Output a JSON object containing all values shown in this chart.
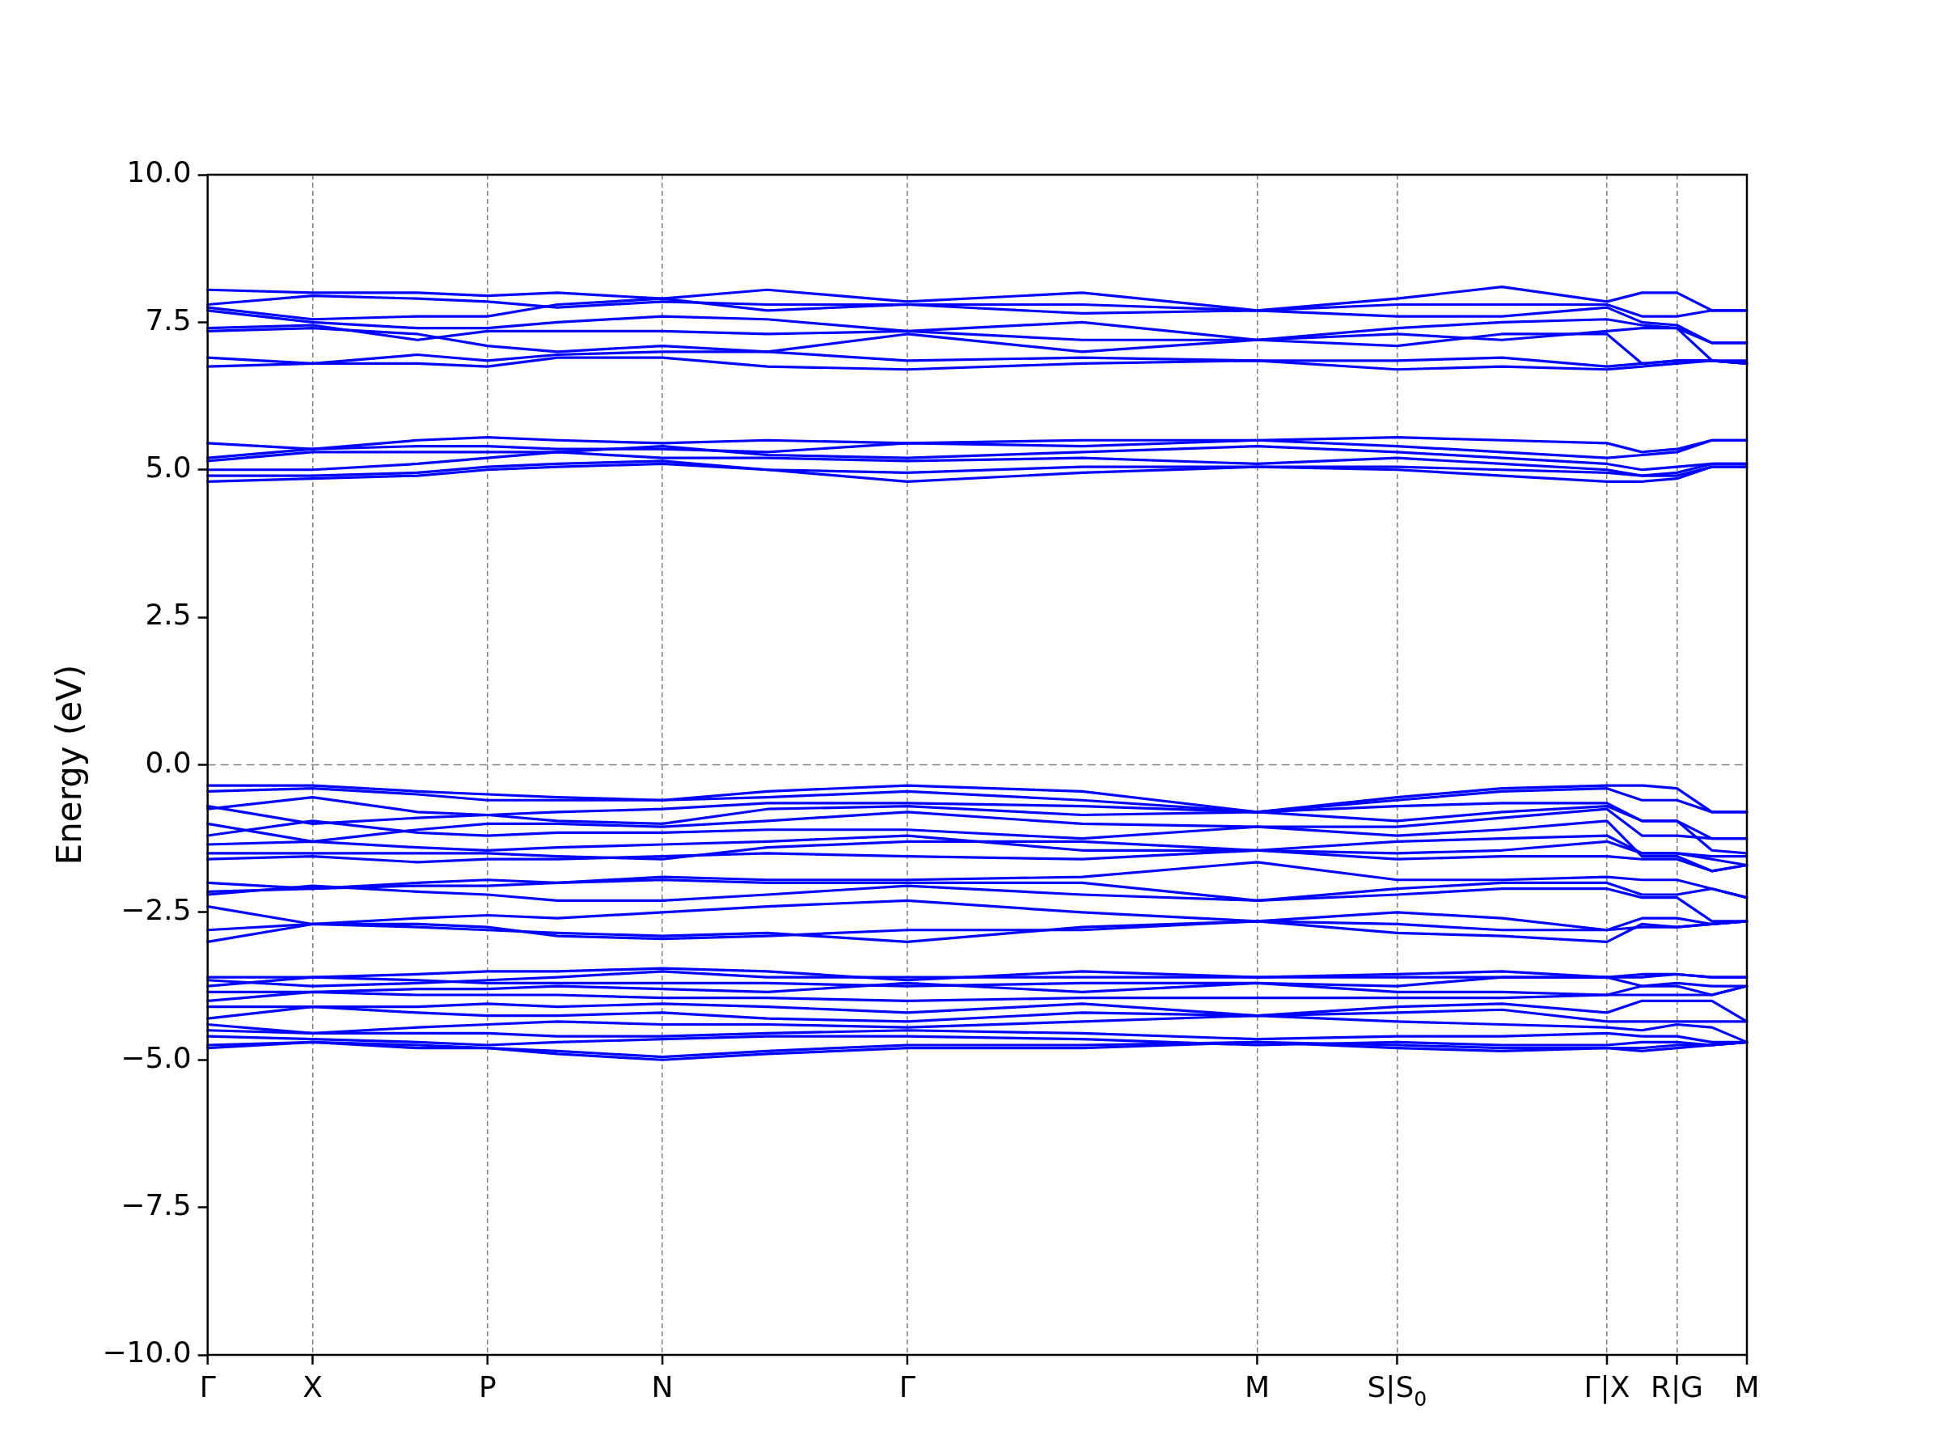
{
  "chart_data": {
    "type": "line",
    "ylabel": "Energy (eV)",
    "marker": "none",
    "grid": "x",
    "categories": [
      "Γ",
      null,
      null,
      "X",
      null,
      null,
      null,
      null,
      "P",
      null,
      null,
      null,
      null,
      "N",
      null,
      null,
      null,
      null,
      null,
      null,
      "Γ",
      null,
      null,
      null,
      null,
      null,
      null,
      null,
      null,
      null,
      "M",
      null,
      null,
      null,
      "S|S$_{0}$",
      null,
      null,
      null,
      null,
      null,
      "Γ|X",
      null,
      "R|G",
      null,
      "M"
    ],
    "ylim": [
      -10,
      10
    ],
    "yticks": [
      {
        "value": -10,
        "label": "−10.0"
      },
      {
        "value": -7.5,
        "label": "−7.5"
      },
      {
        "value": -5,
        "label": "−5.0"
      },
      {
        "value": -2.5,
        "label": "−2.5"
      },
      {
        "value": 0,
        "label": "0.0"
      },
      {
        "value": 2.5,
        "label": "2.5"
      },
      {
        "value": 5,
        "label": "5.0"
      },
      {
        "value": 7.5,
        "label": "7.5"
      },
      {
        "value": 10,
        "label": "10.0"
      }
    ],
    "ref_lines": [
      {
        "axis": "y",
        "value": 0,
        "color": "#808080",
        "line_style": "dashed"
      }
    ],
    "series": [
      {
        "color": "#0000ff",
        "values": [
          8.05,
          null,
          null,
          8.0,
          null,
          null,
          8.0,
          null,
          7.95,
          null,
          8.0,
          null,
          null,
          7.9,
          null,
          null,
          8.05,
          null,
          null,
          null,
          7.85,
          null,
          null,
          null,
          null,
          8.0,
          null,
          null,
          null,
          null,
          7.7,
          null,
          null,
          null,
          7.9,
          null,
          null,
          8.1,
          null,
          null,
          7.85,
          8.0,
          8.0,
          7.7,
          7.7
        ]
      },
      {
        "color": "#0000ff",
        "values": [
          7.8,
          null,
          null,
          7.95,
          null,
          null,
          7.9,
          null,
          7.85,
          null,
          7.75,
          null,
          null,
          7.85,
          null,
          null,
          7.8,
          null,
          null,
          null,
          7.8,
          null,
          null,
          null,
          null,
          7.8,
          null,
          null,
          null,
          null,
          7.7,
          null,
          null,
          null,
          7.8,
          null,
          null,
          7.8,
          null,
          null,
          7.8,
          7.6,
          7.6,
          7.7,
          7.7
        ]
      },
      {
        "color": "#0000ff",
        "values": [
          7.75,
          null,
          null,
          7.55,
          null,
          null,
          7.6,
          null,
          7.6,
          null,
          7.8,
          null,
          null,
          7.9,
          null,
          null,
          7.7,
          null,
          null,
          null,
          7.8,
          null,
          null,
          null,
          null,
          7.65,
          null,
          null,
          null,
          null,
          7.7,
          null,
          null,
          null,
          7.6,
          null,
          null,
          7.6,
          null,
          null,
          7.75,
          7.5,
          7.45,
          7.15,
          7.15
        ]
      },
      {
        "color": "#0000ff",
        "values": [
          7.7,
          null,
          null,
          7.5,
          null,
          null,
          7.4,
          null,
          7.4,
          null,
          7.5,
          null,
          null,
          7.6,
          null,
          null,
          7.55,
          null,
          null,
          null,
          7.35,
          null,
          null,
          null,
          null,
          7.5,
          null,
          null,
          null,
          null,
          7.2,
          null,
          null,
          null,
          7.4,
          null,
          null,
          7.5,
          null,
          null,
          7.55,
          7.45,
          7.4,
          7.15,
          7.15
        ]
      },
      {
        "color": "#0000ff",
        "values": [
          7.4,
          null,
          null,
          7.45,
          null,
          null,
          7.2,
          null,
          7.35,
          null,
          7.35,
          null,
          null,
          7.35,
          null,
          null,
          7.3,
          null,
          null,
          null,
          7.35,
          null,
          null,
          null,
          null,
          7.2,
          null,
          null,
          null,
          null,
          7.2,
          null,
          null,
          null,
          7.3,
          null,
          null,
          7.2,
          null,
          null,
          7.35,
          7.4,
          7.4,
          6.85,
          6.85
        ]
      },
      {
        "color": "#0000ff",
        "values": [
          7.35,
          null,
          null,
          7.4,
          null,
          null,
          7.3,
          null,
          7.1,
          null,
          7.0,
          null,
          null,
          7.1,
          null,
          null,
          7.0,
          null,
          null,
          null,
          7.3,
          null,
          null,
          null,
          null,
          7.0,
          null,
          null,
          null,
          null,
          7.2,
          null,
          null,
          null,
          7.1,
          null,
          null,
          7.3,
          null,
          null,
          7.3,
          6.8,
          6.85,
          6.85,
          6.8
        ]
      },
      {
        "color": "#0000ff",
        "values": [
          6.9,
          null,
          null,
          6.8,
          null,
          null,
          6.95,
          null,
          6.85,
          null,
          6.95,
          null,
          null,
          7.0,
          null,
          null,
          7.0,
          null,
          null,
          null,
          6.85,
          null,
          null,
          null,
          null,
          6.9,
          null,
          null,
          null,
          null,
          6.85,
          null,
          null,
          null,
          6.85,
          null,
          null,
          6.9,
          null,
          null,
          6.75,
          6.8,
          6.85,
          6.85,
          6.8
        ]
      },
      {
        "color": "#0000ff",
        "values": [
          6.75,
          null,
          null,
          6.8,
          null,
          null,
          6.8,
          null,
          6.75,
          null,
          6.9,
          null,
          null,
          6.9,
          null,
          null,
          6.75,
          null,
          null,
          null,
          6.7,
          null,
          null,
          null,
          null,
          6.8,
          null,
          null,
          null,
          null,
          6.85,
          null,
          null,
          null,
          6.7,
          null,
          null,
          6.75,
          null,
          null,
          6.7,
          6.75,
          6.8,
          6.85,
          6.8
        ]
      },
      {
        "color": "#0000ff",
        "values": [
          5.45,
          null,
          null,
          5.35,
          null,
          null,
          5.5,
          null,
          5.55,
          null,
          5.5,
          null,
          null,
          5.45,
          null,
          null,
          5.5,
          null,
          null,
          null,
          5.45,
          null,
          null,
          null,
          null,
          5.5,
          null,
          null,
          null,
          null,
          5.5,
          null,
          null,
          null,
          5.55,
          null,
          null,
          5.5,
          null,
          null,
          5.45,
          5.3,
          5.35,
          5.5,
          5.5
        ]
      },
      {
        "color": "#0000ff",
        "values": [
          5.2,
          null,
          null,
          5.35,
          null,
          null,
          5.4,
          null,
          5.4,
          null,
          5.35,
          null,
          null,
          5.35,
          null,
          null,
          5.3,
          null,
          null,
          null,
          5.45,
          null,
          null,
          null,
          null,
          5.4,
          null,
          null,
          null,
          null,
          5.5,
          null,
          null,
          null,
          5.4,
          null,
          null,
          5.3,
          null,
          null,
          5.2,
          5.25,
          5.3,
          5.5,
          5.5
        ]
      },
      {
        "color": "#0000ff",
        "values": [
          5.15,
          null,
          null,
          5.3,
          null,
          null,
          5.3,
          null,
          5.3,
          null,
          5.3,
          null,
          null,
          5.4,
          null,
          null,
          5.25,
          null,
          null,
          null,
          5.2,
          null,
          null,
          null,
          null,
          5.3,
          null,
          null,
          null,
          null,
          5.4,
          null,
          null,
          null,
          5.3,
          null,
          null,
          5.2,
          null,
          null,
          5.1,
          5.0,
          5.05,
          5.1,
          5.1
        ]
      },
      {
        "color": "#0000ff",
        "values": [
          5.0,
          null,
          null,
          5.0,
          null,
          null,
          5.1,
          null,
          5.2,
          null,
          5.3,
          null,
          null,
          5.2,
          null,
          null,
          5.2,
          null,
          null,
          null,
          5.15,
          null,
          null,
          null,
          null,
          5.2,
          null,
          null,
          null,
          null,
          5.1,
          null,
          null,
          null,
          5.2,
          null,
          null,
          5.1,
          null,
          null,
          5.0,
          4.9,
          4.95,
          5.1,
          5.1
        ]
      },
      {
        "color": "#0000ff",
        "values": [
          4.9,
          null,
          null,
          4.9,
          null,
          null,
          4.95,
          null,
          5.05,
          null,
          5.1,
          null,
          null,
          5.15,
          null,
          null,
          5.0,
          null,
          null,
          null,
          4.95,
          null,
          null,
          null,
          null,
          5.05,
          null,
          null,
          null,
          null,
          5.05,
          null,
          null,
          null,
          5.05,
          null,
          null,
          5.0,
          null,
          null,
          4.95,
          4.9,
          4.9,
          5.05,
          5.05
        ]
      },
      {
        "color": "#0000ff",
        "values": [
          4.8,
          null,
          null,
          4.85,
          null,
          null,
          4.9,
          null,
          5.0,
          null,
          5.05,
          null,
          null,
          5.1,
          null,
          null,
          5.0,
          null,
          null,
          null,
          4.8,
          null,
          null,
          null,
          null,
          4.95,
          null,
          null,
          null,
          null,
          5.05,
          null,
          null,
          null,
          5.0,
          null,
          null,
          4.9,
          null,
          null,
          4.8,
          4.8,
          4.85,
          5.05,
          5.05
        ]
      },
      {
        "color": "#0000ff",
        "values": [
          -0.35,
          null,
          null,
          -0.35,
          null,
          null,
          -0.45,
          null,
          -0.5,
          null,
          -0.55,
          null,
          null,
          -0.6,
          null,
          null,
          -0.45,
          null,
          null,
          null,
          -0.35,
          null,
          null,
          null,
          null,
          -0.45,
          null,
          null,
          null,
          null,
          -0.8,
          null,
          null,
          null,
          -0.55,
          null,
          null,
          -0.4,
          null,
          null,
          -0.35,
          -0.35,
          -0.4,
          -0.8,
          -0.8
        ]
      },
      {
        "color": "#0000ff",
        "values": [
          -0.45,
          null,
          null,
          -0.4,
          null,
          null,
          -0.5,
          null,
          -0.6,
          null,
          -0.6,
          null,
          null,
          -0.6,
          null,
          null,
          -0.55,
          null,
          null,
          null,
          -0.45,
          null,
          null,
          null,
          null,
          -0.6,
          null,
          null,
          null,
          null,
          -0.8,
          null,
          null,
          null,
          -0.6,
          null,
          null,
          -0.45,
          null,
          null,
          -0.4,
          -0.6,
          -0.6,
          -0.8,
          -0.8
        ]
      },
      {
        "color": "#0000ff",
        "values": [
          -0.7,
          null,
          null,
          -1.0,
          null,
          null,
          -0.9,
          null,
          -0.85,
          null,
          -0.8,
          null,
          null,
          -0.75,
          null,
          null,
          -0.65,
          null,
          null,
          null,
          -0.65,
          null,
          null,
          null,
          null,
          -0.7,
          null,
          null,
          null,
          null,
          -0.8,
          null,
          null,
          null,
          -0.7,
          null,
          null,
          -0.65,
          null,
          null,
          -0.65,
          -0.95,
          -0.95,
          -1.25,
          -1.25
        ]
      },
      {
        "color": "#0000ff",
        "values": [
          -0.75,
          null,
          null,
          -0.55,
          null,
          null,
          -0.8,
          null,
          -0.85,
          null,
          -0.95,
          null,
          null,
          -1.0,
          null,
          null,
          -0.75,
          null,
          null,
          null,
          -0.7,
          null,
          null,
          null,
          null,
          -0.85,
          null,
          null,
          null,
          null,
          -0.8,
          null,
          null,
          null,
          -0.95,
          null,
          null,
          -0.8,
          null,
          null,
          -0.7,
          -0.95,
          -0.95,
          -1.45,
          -1.5
        ]
      },
      {
        "color": "#0000ff",
        "values": [
          -1.0,
          null,
          null,
          -1.3,
          null,
          null,
          -1.1,
          null,
          -1.0,
          null,
          -1.0,
          null,
          null,
          -1.05,
          null,
          null,
          -0.95,
          null,
          null,
          null,
          -0.8,
          null,
          null,
          null,
          null,
          -1.0,
          null,
          null,
          null,
          null,
          -1.05,
          null,
          null,
          null,
          -1.05,
          null,
          null,
          -0.9,
          null,
          null,
          -0.75,
          -1.2,
          -1.2,
          -1.25,
          -1.25
        ]
      },
      {
        "color": "#0000ff",
        "values": [
          -1.2,
          null,
          null,
          -0.95,
          null,
          null,
          -1.15,
          null,
          -1.2,
          null,
          -1.15,
          null,
          null,
          -1.15,
          null,
          null,
          -1.1,
          null,
          null,
          null,
          -1.1,
          null,
          null,
          null,
          null,
          -1.25,
          null,
          null,
          null,
          null,
          -1.05,
          null,
          null,
          null,
          -1.2,
          null,
          null,
          -1.1,
          null,
          null,
          -0.95,
          -1.55,
          -1.55,
          -1.8,
          -1.7
        ]
      },
      {
        "color": "#0000ff",
        "values": [
          -1.35,
          null,
          null,
          -1.3,
          null,
          null,
          -1.4,
          null,
          -1.45,
          null,
          -1.4,
          null,
          null,
          -1.35,
          null,
          null,
          -1.3,
          null,
          null,
          null,
          -1.2,
          null,
          null,
          null,
          null,
          -1.45,
          null,
          null,
          null,
          null,
          -1.45,
          null,
          null,
          null,
          -1.3,
          null,
          null,
          -1.25,
          null,
          null,
          -1.2,
          -1.5,
          -1.5,
          -1.55,
          -1.55
        ]
      },
      {
        "color": "#0000ff",
        "values": [
          -1.5,
          null,
          null,
          -1.5,
          null,
          null,
          -1.5,
          null,
          -1.5,
          null,
          -1.55,
          null,
          null,
          -1.6,
          null,
          null,
          -1.4,
          null,
          null,
          null,
          -1.3,
          null,
          null,
          null,
          null,
          -1.3,
          null,
          null,
          null,
          null,
          -1.45,
          null,
          null,
          null,
          -1.5,
          null,
          null,
          -1.45,
          null,
          null,
          -1.3,
          -1.5,
          -1.5,
          -1.6,
          -1.7
        ]
      },
      {
        "color": "#0000ff",
        "values": [
          -1.6,
          null,
          null,
          -1.55,
          null,
          null,
          -1.65,
          null,
          -1.6,
          null,
          -1.6,
          null,
          null,
          -1.55,
          null,
          null,
          -1.5,
          null,
          null,
          null,
          -1.55,
          null,
          null,
          null,
          null,
          -1.6,
          null,
          null,
          null,
          null,
          -1.45,
          null,
          null,
          null,
          -1.6,
          null,
          null,
          -1.55,
          null,
          null,
          -1.55,
          -1.6,
          -1.6,
          -1.8,
          -1.7
        ]
      },
      {
        "color": "#0000ff",
        "values": [
          -2.0,
          null,
          null,
          -2.1,
          null,
          null,
          -2.0,
          null,
          -1.95,
          null,
          -2.0,
          null,
          null,
          -1.9,
          null,
          null,
          -1.95,
          null,
          null,
          null,
          -1.95,
          null,
          null,
          null,
          null,
          -1.9,
          null,
          null,
          null,
          null,
          -1.65,
          null,
          null,
          null,
          -1.95,
          null,
          null,
          -1.95,
          null,
          null,
          -1.9,
          -1.95,
          -1.95,
          -2.1,
          -2.25
        ]
      },
      {
        "color": "#0000ff",
        "values": [
          -2.15,
          null,
          null,
          -2.1,
          null,
          null,
          -2.05,
          null,
          -2.05,
          null,
          -2.0,
          null,
          null,
          -1.95,
          null,
          null,
          -2.0,
          null,
          null,
          null,
          -2.0,
          null,
          null,
          null,
          null,
          -2.0,
          null,
          null,
          null,
          null,
          -2.3,
          null,
          null,
          null,
          -2.1,
          null,
          null,
          -2.0,
          null,
          null,
          -2.0,
          -2.2,
          -2.2,
          -2.1,
          -2.25
        ]
      },
      {
        "color": "#0000ff",
        "values": [
          -2.2,
          null,
          null,
          -2.05,
          null,
          null,
          -2.15,
          null,
          -2.2,
          null,
          -2.3,
          null,
          null,
          -2.3,
          null,
          null,
          -2.2,
          null,
          null,
          null,
          -2.05,
          null,
          null,
          null,
          null,
          -2.2,
          null,
          null,
          null,
          null,
          -2.3,
          null,
          null,
          null,
          -2.2,
          null,
          null,
          -2.1,
          null,
          null,
          -2.1,
          -2.25,
          -2.25,
          -2.65,
          -2.65
        ]
      },
      {
        "color": "#0000ff",
        "values": [
          -2.4,
          null,
          null,
          -2.7,
          null,
          null,
          -2.6,
          null,
          -2.55,
          null,
          -2.6,
          null,
          null,
          -2.5,
          null,
          null,
          -2.4,
          null,
          null,
          null,
          -2.3,
          null,
          null,
          null,
          null,
          -2.5,
          null,
          null,
          null,
          null,
          -2.65,
          null,
          null,
          null,
          -2.5,
          null,
          null,
          -2.6,
          null,
          null,
          -2.8,
          -2.6,
          -2.6,
          -2.7,
          -2.65
        ]
      },
      {
        "color": "#0000ff",
        "values": [
          -2.8,
          null,
          null,
          -2.7,
          null,
          null,
          -2.7,
          null,
          -2.75,
          null,
          -2.9,
          null,
          null,
          -2.95,
          null,
          null,
          -2.9,
          null,
          null,
          null,
          -2.8,
          null,
          null,
          null,
          null,
          -2.8,
          null,
          null,
          null,
          null,
          -2.65,
          null,
          null,
          null,
          -2.7,
          null,
          null,
          -2.8,
          null,
          null,
          -2.8,
          -2.75,
          -2.75,
          -2.7,
          -2.65
        ]
      },
      {
        "color": "#0000ff",
        "values": [
          -3.0,
          null,
          null,
          -2.7,
          null,
          null,
          -2.75,
          null,
          -2.8,
          null,
          -2.85,
          null,
          null,
          -2.9,
          null,
          null,
          -2.85,
          null,
          null,
          null,
          -3.0,
          null,
          null,
          null,
          null,
          -2.75,
          null,
          null,
          null,
          null,
          -2.65,
          null,
          null,
          null,
          -2.85,
          null,
          null,
          -2.9,
          null,
          null,
          -3.0,
          -2.7,
          -2.75,
          -2.7,
          -2.65
        ]
      },
      {
        "color": "#0000ff",
        "values": [
          -3.6,
          null,
          null,
          -3.6,
          null,
          null,
          -3.55,
          null,
          -3.5,
          null,
          -3.5,
          null,
          null,
          -3.45,
          null,
          null,
          -3.5,
          null,
          null,
          null,
          -3.65,
          null,
          null,
          null,
          null,
          -3.5,
          null,
          null,
          null,
          null,
          -3.6,
          null,
          null,
          null,
          -3.55,
          null,
          null,
          -3.5,
          null,
          null,
          -3.6,
          -3.6,
          -3.55,
          -3.6,
          -3.6
        ]
      },
      {
        "color": "#0000ff",
        "values": [
          -3.65,
          null,
          null,
          -3.75,
          null,
          null,
          -3.7,
          null,
          -3.65,
          null,
          -3.6,
          null,
          null,
          -3.5,
          null,
          null,
          -3.6,
          null,
          null,
          null,
          -3.6,
          null,
          null,
          null,
          null,
          -3.6,
          null,
          null,
          null,
          null,
          -3.6,
          null,
          null,
          null,
          -3.6,
          null,
          null,
          -3.6,
          null,
          null,
          -3.6,
          -3.55,
          -3.55,
          -3.6,
          -3.6
        ]
      },
      {
        "color": "#0000ff",
        "values": [
          -3.75,
          null,
          null,
          -3.6,
          null,
          null,
          -3.65,
          null,
          -3.7,
          null,
          -3.7,
          null,
          null,
          -3.7,
          null,
          null,
          -3.7,
          null,
          null,
          null,
          -3.75,
          null,
          null,
          null,
          null,
          -3.7,
          null,
          null,
          null,
          null,
          -3.7,
          null,
          null,
          null,
          -3.75,
          null,
          null,
          -3.6,
          null,
          null,
          -3.6,
          -3.75,
          -3.7,
          -3.75,
          -3.75
        ]
      },
      {
        "color": "#0000ff",
        "values": [
          -3.85,
          null,
          null,
          -3.85,
          null,
          null,
          -3.8,
          null,
          -3.8,
          null,
          -3.75,
          null,
          null,
          -3.8,
          null,
          null,
          -3.85,
          null,
          null,
          null,
          -3.7,
          null,
          null,
          null,
          null,
          -3.85,
          null,
          null,
          null,
          null,
          -3.7,
          null,
          null,
          null,
          -3.85,
          null,
          null,
          -3.85,
          null,
          null,
          -3.9,
          -3.75,
          -3.75,
          -3.9,
          -3.75
        ]
      },
      {
        "color": "#0000ff",
        "values": [
          -4.0,
          null,
          null,
          -3.85,
          null,
          null,
          -3.9,
          null,
          -3.9,
          null,
          -3.9,
          null,
          null,
          -3.95,
          null,
          null,
          -3.95,
          null,
          null,
          null,
          -4.0,
          null,
          null,
          null,
          null,
          -3.95,
          null,
          null,
          null,
          null,
          -3.95,
          null,
          null,
          null,
          -3.95,
          null,
          null,
          -3.95,
          null,
          null,
          -3.9,
          -3.9,
          -3.9,
          -3.9,
          -3.75
        ]
      },
      {
        "color": "#0000ff",
        "values": [
          -4.1,
          null,
          null,
          -4.1,
          null,
          null,
          -4.1,
          null,
          -4.05,
          null,
          -4.1,
          null,
          null,
          -4.05,
          null,
          null,
          -4.1,
          null,
          null,
          null,
          -4.2,
          null,
          null,
          null,
          null,
          -4.05,
          null,
          null,
          null,
          null,
          -4.25,
          null,
          null,
          null,
          -4.1,
          null,
          null,
          -4.05,
          null,
          null,
          -4.2,
          -4.0,
          -4.0,
          -4.0,
          -4.35
        ]
      },
      {
        "color": "#0000ff",
        "values": [
          -4.3,
          null,
          null,
          -4.1,
          null,
          null,
          -4.2,
          null,
          -4.25,
          null,
          -4.25,
          null,
          null,
          -4.2,
          null,
          null,
          -4.3,
          null,
          null,
          null,
          -4.35,
          null,
          null,
          null,
          null,
          -4.2,
          null,
          null,
          null,
          null,
          -4.25,
          null,
          null,
          null,
          -4.2,
          null,
          null,
          -4.15,
          null,
          null,
          -4.35,
          -4.35,
          -4.35,
          -4.35,
          -4.35
        ]
      },
      {
        "color": "#0000ff",
        "values": [
          -4.4,
          null,
          null,
          -4.55,
          null,
          null,
          -4.45,
          null,
          -4.4,
          null,
          -4.35,
          null,
          null,
          -4.4,
          null,
          null,
          -4.4,
          null,
          null,
          null,
          -4.45,
          null,
          null,
          null,
          null,
          -4.35,
          null,
          null,
          null,
          null,
          -4.25,
          null,
          null,
          null,
          -4.35,
          null,
          null,
          -4.4,
          null,
          null,
          -4.45,
          -4.5,
          -4.4,
          -4.45,
          -4.7
        ]
      },
      {
        "color": "#0000ff",
        "values": [
          -4.5,
          null,
          null,
          -4.55,
          null,
          null,
          -4.55,
          null,
          -4.55,
          null,
          -4.6,
          null,
          null,
          -4.6,
          null,
          null,
          -4.55,
          null,
          null,
          null,
          -4.5,
          null,
          null,
          null,
          null,
          -4.55,
          null,
          null,
          null,
          null,
          -4.65,
          null,
          null,
          null,
          -4.6,
          null,
          null,
          -4.6,
          null,
          null,
          -4.55,
          -4.6,
          -4.6,
          -4.7,
          -4.7
        ]
      },
      {
        "color": "#0000ff",
        "values": [
          -4.6,
          null,
          null,
          -4.65,
          null,
          null,
          -4.7,
          null,
          -4.75,
          null,
          -4.7,
          null,
          null,
          -4.65,
          null,
          null,
          -4.6,
          null,
          null,
          null,
          -4.6,
          null,
          null,
          null,
          null,
          -4.65,
          null,
          null,
          null,
          null,
          -4.75,
          null,
          null,
          null,
          -4.7,
          null,
          null,
          -4.75,
          null,
          null,
          -4.75,
          -4.7,
          -4.7,
          -4.75,
          -4.7
        ]
      },
      {
        "color": "#0000ff",
        "values": [
          -4.75,
          null,
          null,
          -4.7,
          null,
          null,
          -4.8,
          null,
          -4.8,
          null,
          -4.9,
          null,
          null,
          -5.0,
          null,
          null,
          -4.9,
          null,
          null,
          null,
          -4.8,
          null,
          null,
          null,
          null,
          -4.8,
          null,
          null,
          null,
          null,
          -4.7,
          null,
          null,
          null,
          -4.8,
          null,
          null,
          -4.85,
          null,
          null,
          -4.8,
          -4.8,
          -4.75,
          -4.75,
          -4.7
        ]
      },
      {
        "color": "#0000ff",
        "values": [
          -4.8,
          null,
          null,
          -4.7,
          null,
          null,
          -4.75,
          null,
          -4.8,
          null,
          -4.85,
          null,
          null,
          -4.95,
          null,
          null,
          -4.85,
          null,
          null,
          null,
          -4.75,
          null,
          null,
          null,
          null,
          -4.75,
          null,
          null,
          null,
          null,
          -4.7,
          null,
          null,
          null,
          -4.75,
          null,
          null,
          -4.8,
          null,
          null,
          -4.8,
          -4.85,
          -4.8,
          -4.75,
          -4.7
        ]
      }
    ]
  }
}
